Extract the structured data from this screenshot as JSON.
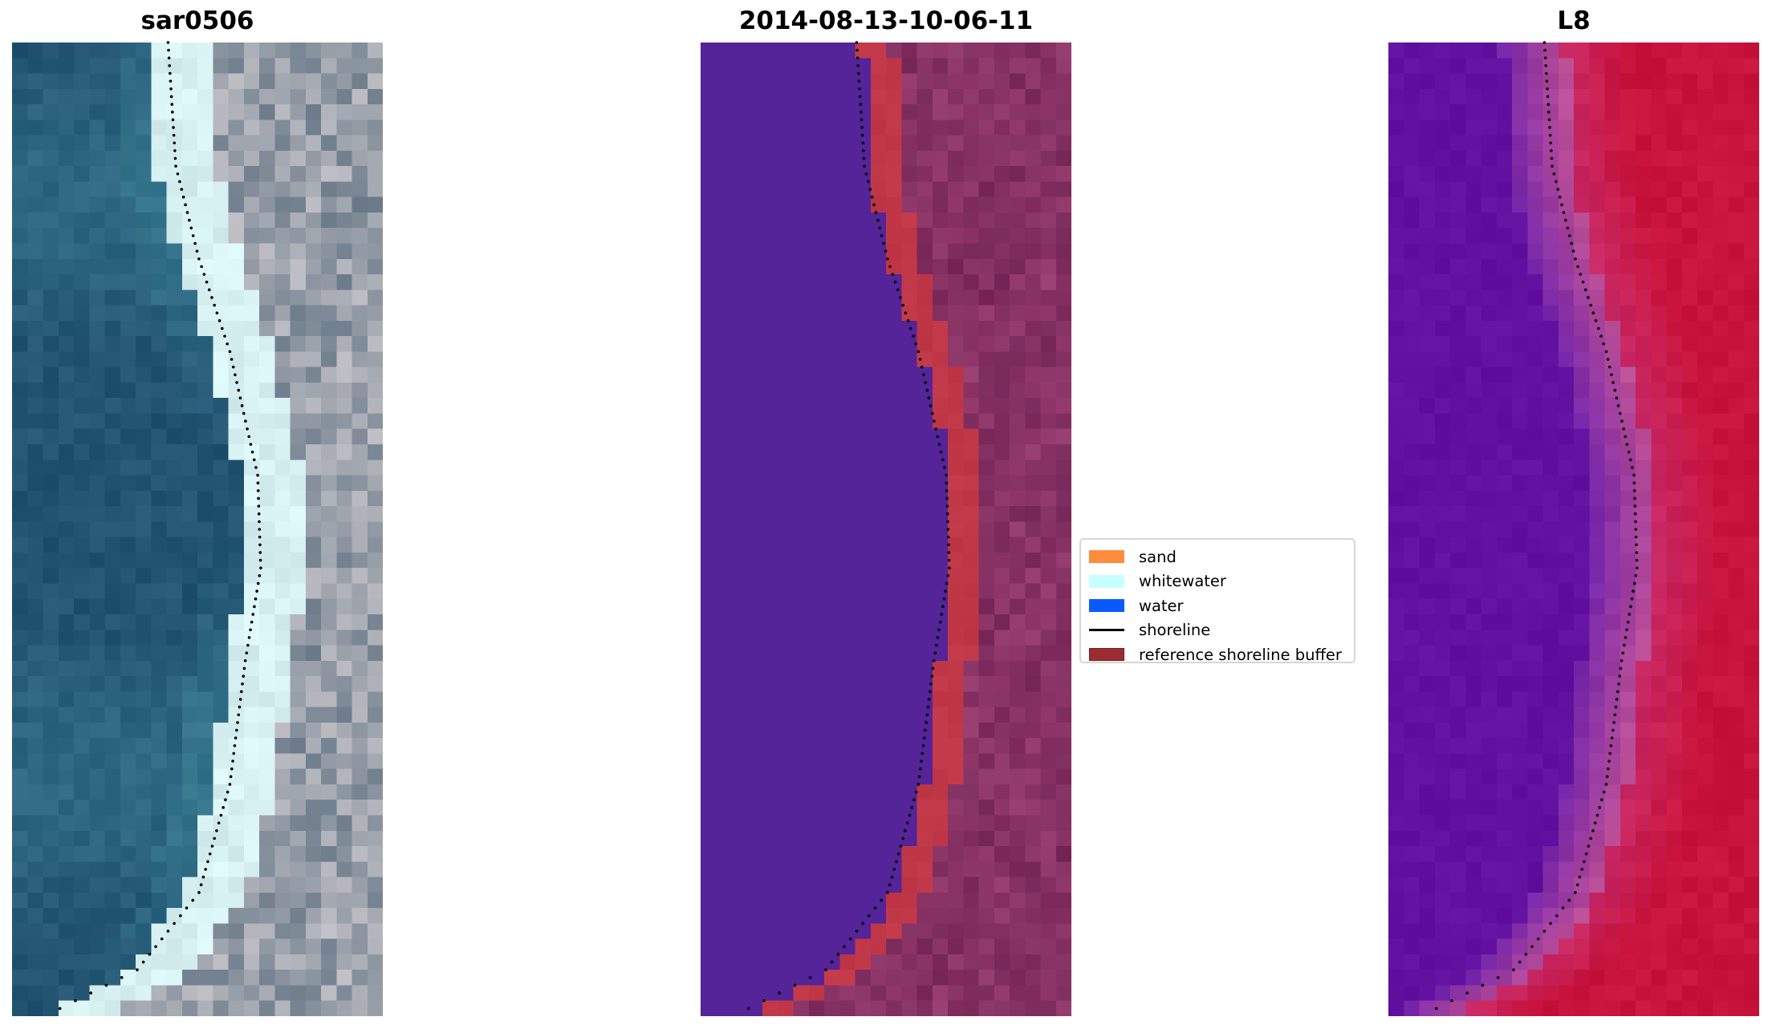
{
  "panels": [
    {
      "title": "sar0506",
      "kind": "rgb"
    },
    {
      "title": "2014-08-13-10-06-11",
      "kind": "classified"
    },
    {
      "title": "L8",
      "kind": "index"
    }
  ],
  "legend": {
    "items": [
      {
        "label": "sand",
        "color": "#ff8c3c"
      },
      {
        "label": "whitewater",
        "color": "#c8ffff"
      },
      {
        "label": "water",
        "color": "#0a5aff"
      },
      {
        "label": "shoreline",
        "color": "#000000"
      },
      {
        "label": "reference shoreline buffer",
        "color": "#9b2d32"
      }
    ]
  }
}
